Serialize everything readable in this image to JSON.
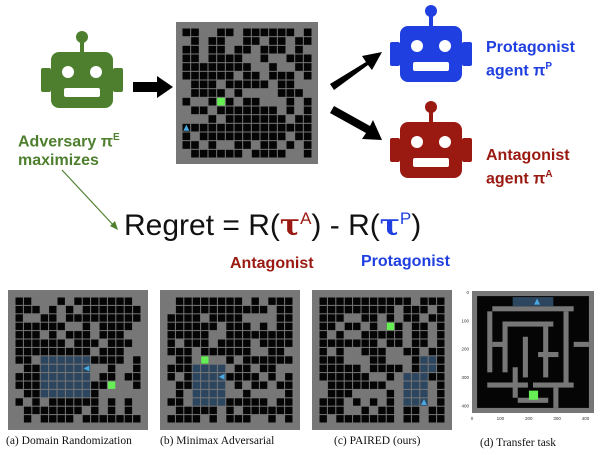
{
  "adversary": {
    "label_line1": "Adversary π",
    "sup": "E",
    "label_line2": "maximizes",
    "color": "#4e7f2e"
  },
  "protagonist": {
    "label_line1": "Protagonist",
    "label_line2": "agent π",
    "sup": "P",
    "color": "#1f3fe0"
  },
  "antagonist": {
    "label_line1": "Antagonist",
    "label_line2": "agent π",
    "sup": "A",
    "color": "#9a1a12"
  },
  "formula": {
    "prefix": "Regret = R(",
    "tauA": "τ",
    "supA": "A",
    "middle": ") - R(",
    "tauP": "τ",
    "supP": "P",
    "suffix": ")"
  },
  "formula_labels": {
    "antagonist": "Antagonist",
    "protagonist": "Protagonist"
  },
  "captions": {
    "a": "(a) Domain Randomization",
    "b": "(b) Minimax Adversarial",
    "c": "(c) PAIRED (ours)",
    "d": "(d) Transfer task"
  },
  "transfer_axis": {
    "y_ticks": [
      "0",
      "100",
      "200",
      "300",
      "400"
    ],
    "x_ticks": [
      "0",
      "100",
      "200",
      "300",
      "400"
    ]
  },
  "colors": {
    "wall": "#777777",
    "floor": "#050505",
    "goal": "#66ee55",
    "visited": "#2c4660",
    "agent": "#4aa8e0"
  }
}
